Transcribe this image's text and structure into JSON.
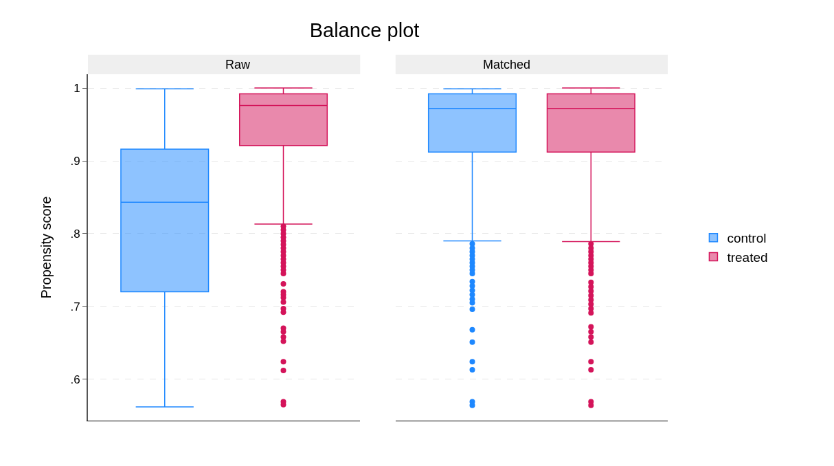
{
  "chart_data": {
    "type": "box",
    "title": "Balance plot",
    "ylabel": "Propensity score",
    "categories": [
      "Raw",
      "Matched"
    ],
    "series": [
      {
        "name": "control",
        "color": "#1e88ff",
        "boxes": [
          {
            "low": 0.562,
            "q1": 0.72,
            "median": 0.843,
            "q3": 0.916,
            "high": 0.999
          },
          {
            "low": 0.79,
            "q1": 0.912,
            "median": 0.972,
            "q3": 0.992,
            "high": 0.999,
            "outliers": [
              0.786,
              0.78,
              0.775,
              0.77,
              0.765,
              0.76,
              0.755,
              0.75,
              0.745,
              0.734,
              0.728,
              0.722,
              0.716,
              0.71,
              0.705,
              0.696,
              0.668,
              0.651,
              0.624,
              0.613,
              0.569,
              0.564
            ]
          }
        ]
      },
      {
        "name": "treated",
        "color": "#d4145a",
        "boxes": [
          {
            "low": 0.813,
            "q1": 0.921,
            "median": 0.976,
            "q3": 0.992,
            "high": 1.0,
            "outliers": [
              0.81,
              0.805,
              0.8,
              0.795,
              0.79,
              0.785,
              0.78,
              0.775,
              0.77,
              0.765,
              0.76,
              0.755,
              0.75,
              0.745,
              0.731,
              0.72,
              0.716,
              0.712,
              0.706,
              0.697,
              0.692,
              0.67,
              0.665,
              0.658,
              0.652,
              0.624,
              0.612,
              0.569,
              0.565
            ]
          },
          {
            "low": 0.789,
            "q1": 0.912,
            "median": 0.972,
            "q3": 0.992,
            "high": 1.0,
            "outliers": [
              0.786,
              0.78,
              0.775,
              0.77,
              0.765,
              0.76,
              0.755,
              0.75,
              0.745,
              0.733,
              0.727,
              0.721,
              0.715,
              0.709,
              0.703,
              0.697,
              0.691,
              0.672,
              0.665,
              0.658,
              0.651,
              0.624,
              0.613,
              0.569,
              0.564
            ]
          }
        ]
      }
    ],
    "ylim": [
      0.543,
      1.019
    ],
    "yticks": [
      {
        "value": 0.6,
        "label": ".6"
      },
      {
        "value": 0.7,
        "label": ".7"
      },
      {
        "value": 0.8,
        "label": ".8"
      },
      {
        "value": 0.9,
        "label": ".9"
      },
      1
    ],
    "grid": "y",
    "legend": "right",
    "marker": "circle"
  }
}
